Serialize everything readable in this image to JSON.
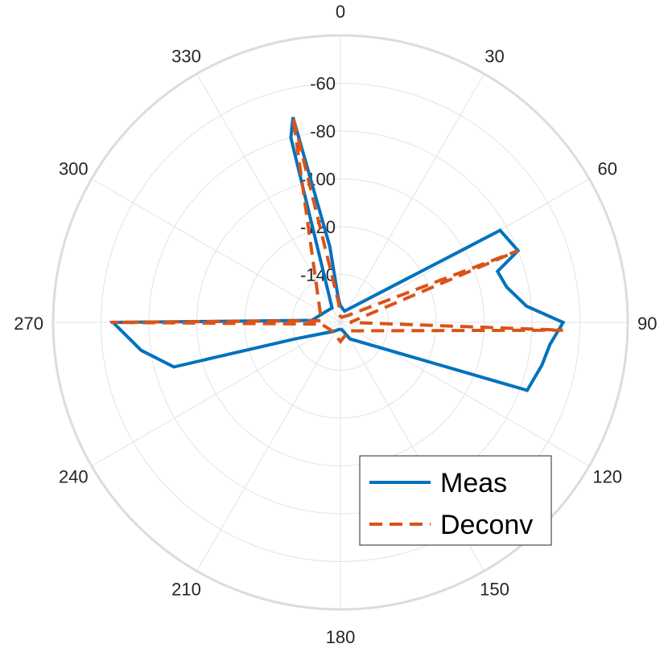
{
  "chart_data": {
    "type": "polar-line",
    "theta_direction": "clockwise",
    "theta_zero": "top",
    "rlim": [
      -160,
      -40
    ],
    "rticks": [
      -140,
      -120,
      -100,
      -80,
      -60
    ],
    "rtick_labels": [
      "-140",
      "-120",
      "-100",
      "-80",
      "-60"
    ],
    "theta_ticks": [
      0,
      30,
      60,
      90,
      120,
      150,
      180,
      210,
      240,
      270,
      300,
      330
    ],
    "theta_tick_labels": [
      "0",
      "30",
      "60",
      "90",
      "120",
      "150",
      "180",
      "210",
      "240",
      "270",
      "300",
      "330"
    ],
    "grid": true,
    "legend_position": "bottom-right",
    "series": [
      {
        "name": "Meas",
        "color": "#0072BD",
        "style": "solid",
        "points": [
          {
            "theta": 0,
            "r": -153
          },
          {
            "theta": 20,
            "r": -155
          },
          {
            "theta": 60,
            "r": -83
          },
          {
            "theta": 68,
            "r": -80
          },
          {
            "theta": 72,
            "r": -91
          },
          {
            "theta": 78,
            "r": -89
          },
          {
            "theta": 85,
            "r": -82
          },
          {
            "theta": 90,
            "r": -67
          },
          {
            "theta": 96,
            "r": -72
          },
          {
            "theta": 102,
            "r": -74
          },
          {
            "theta": 110,
            "r": -77
          },
          {
            "theta": 150,
            "r": -152
          },
          {
            "theta": 170,
            "r": -157
          },
          {
            "theta": 190,
            "r": -157
          },
          {
            "theta": 220,
            "r": -155
          },
          {
            "theta": 250,
            "r": -140
          },
          {
            "theta": 255,
            "r": -88
          },
          {
            "theta": 262,
            "r": -76
          },
          {
            "theta": 270,
            "r": -65
          },
          {
            "theta": 274,
            "r": -148
          },
          {
            "theta": 300,
            "r": -152
          },
          {
            "theta": 330,
            "r": -153
          },
          {
            "theta": 345,
            "r": -80
          },
          {
            "theta": 347,
            "r": -72
          },
          {
            "theta": 352,
            "r": -128
          },
          {
            "theta": 355,
            "r": -150
          },
          {
            "theta": 360,
            "r": -153
          }
        ]
      },
      {
        "name": "Deconv",
        "color": "#D95319",
        "style": "dashed",
        "points": [
          {
            "theta": 0,
            "r": -158
          },
          {
            "theta": 45,
            "r": -156
          },
          {
            "theta": 68,
            "r": -80
          },
          {
            "theta": 90,
            "r": -156
          },
          {
            "theta": 92,
            "r": -67
          },
          {
            "theta": 135,
            "r": -155
          },
          {
            "theta": 180,
            "r": -152
          },
          {
            "theta": 225,
            "r": -155
          },
          {
            "theta": 265,
            "r": -152
          },
          {
            "theta": 270,
            "r": -64
          },
          {
            "theta": 275,
            "r": -152
          },
          {
            "theta": 347,
            "r": -72
          },
          {
            "theta": 355,
            "r": -152
          },
          {
            "theta": 360,
            "r": -158
          }
        ]
      }
    ]
  }
}
